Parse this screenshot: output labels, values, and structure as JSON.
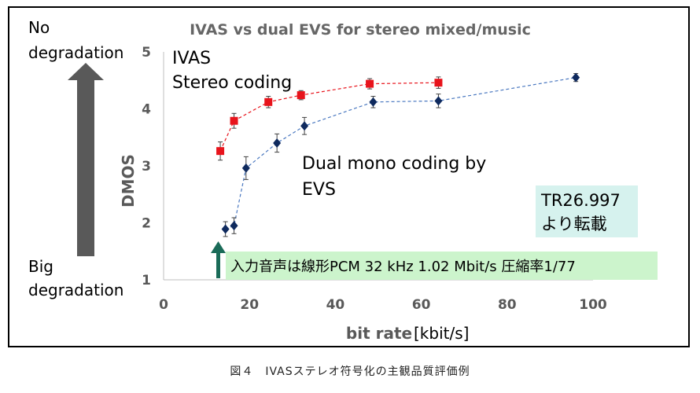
{
  "chart_data": {
    "type": "line",
    "title": "IVAS vs dual EVS for stereo mixed/music",
    "xlabel": "bit rate",
    "xlabel_unit": "[kbit/s]",
    "ylabel": "DMOS",
    "xlim": [
      0,
      100
    ],
    "ylim": [
      1,
      5
    ],
    "xticks": [
      0,
      20,
      40,
      60,
      80,
      100
    ],
    "yticks": [
      1,
      2,
      3,
      4,
      5
    ],
    "grid": false,
    "series": [
      {
        "name": "IVAS Stereo coding",
        "color": "#e8141c",
        "marker": "square",
        "x": [
          13.2,
          16.4,
          24.4,
          32,
          48,
          64
        ],
        "y": [
          3.26,
          3.79,
          4.12,
          4.24,
          4.44,
          4.46
        ],
        "err": [
          0.16,
          0.13,
          0.1,
          0.08,
          0.09,
          0.1
        ]
      },
      {
        "name": "Dual mono coding by EVS",
        "color": "#0f2a5e",
        "marker": "diamond",
        "x": [
          14.4,
          16.4,
          19.2,
          26.4,
          32.8,
          48.8,
          64,
          96
        ],
        "y": [
          1.89,
          1.95,
          2.96,
          3.4,
          3.7,
          4.12,
          4.14,
          4.55
        ],
        "err": [
          0.13,
          0.14,
          0.2,
          0.16,
          0.15,
          0.1,
          0.12,
          0.07
        ]
      }
    ]
  },
  "annotations": {
    "top_label_line1": "No",
    "top_label_line2": "degradation",
    "bottom_label_line1": "Big",
    "bottom_label_line2": "degradation",
    "ivas_line1": "IVAS",
    "ivas_line2": "Stereo coding",
    "evs_line1": "Dual mono coding by",
    "evs_line2": "EVS",
    "source_line1": "TR26.997",
    "source_line2": "より転載",
    "input_note": "入力音声は線形PCM 32 kHz 1.02 Mbit/s 圧縮率1/77",
    "colors": {
      "source_box": "#d6f2ee",
      "note_box": "#ccf4cc",
      "green_arrow": "#1a6b58",
      "grey_arrow": "#595959",
      "title": "#666666"
    }
  },
  "caption": "図４　IVASステレオ符号化の主観品質評価例"
}
